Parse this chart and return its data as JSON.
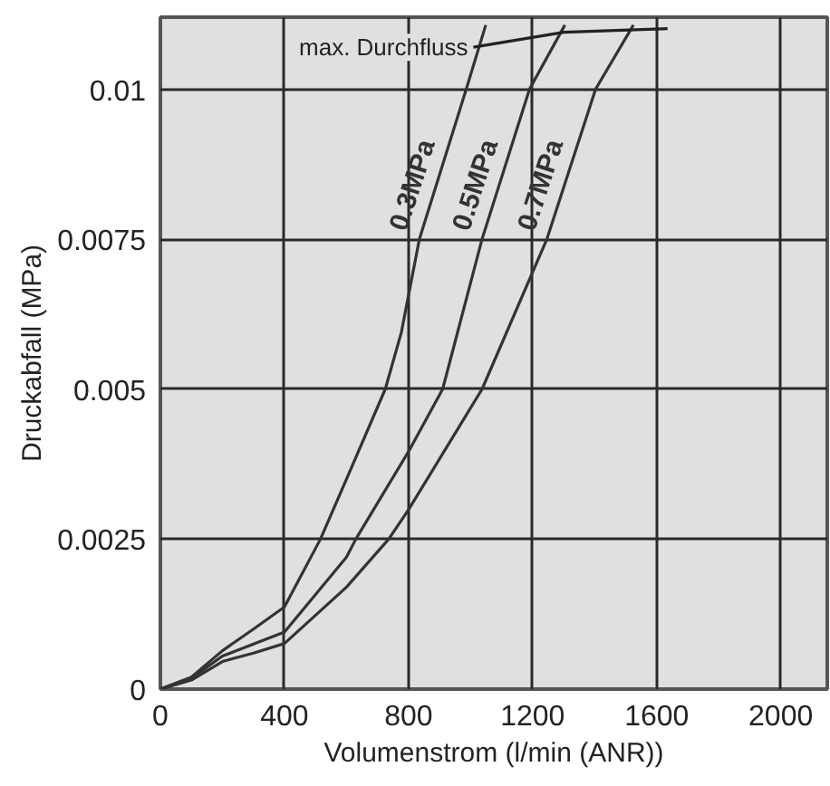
{
  "chart_data": {
    "type": "line",
    "xlabel": "Volumenstrom (l/min (ANR))",
    "ylabel": "Druckabfall (MPa)",
    "xlim": [
      0,
      2150
    ],
    "ylim": [
      0,
      0.0112
    ],
    "xticks": [
      0,
      400,
      800,
      1200,
      1600,
      2000
    ],
    "yticks": [
      0,
      0.0025,
      0.005,
      0.0075,
      0.01
    ],
    "grid": true,
    "marker": "none",
    "line_style": "solid",
    "series": [
      {
        "name": "0.3MPa",
        "color": "#333333",
        "x": [
          0,
          100,
          200,
          300,
          400,
          516,
          600,
          725,
          777,
          835,
          986,
          1049
        ],
        "values": [
          0,
          0.0002,
          0.00064,
          0.001,
          0.00137,
          0.0025,
          0.0035,
          0.005,
          0.00595,
          0.0075,
          0.01,
          0.01107
        ]
      },
      {
        "name": "0.5MPa",
        "color": "#333333",
        "x": [
          0,
          100,
          200,
          300,
          400,
          600,
          630,
          800,
          910,
          1037,
          1190,
          1304
        ],
        "values": [
          0,
          0.00018,
          0.00055,
          0.00075,
          0.00095,
          0.0022,
          0.0025,
          0.00396,
          0.005,
          0.0075,
          0.01,
          0.01107
        ]
      },
      {
        "name": "0.7MPa",
        "color": "#333333",
        "x": [
          0,
          100,
          200,
          300,
          400,
          600,
          736,
          800,
          1037,
          1246,
          1403,
          1525
        ],
        "values": [
          0,
          0.00015,
          0.00046,
          0.0006,
          0.00076,
          0.0017,
          0.0025,
          0.00299,
          0.005,
          0.0075,
          0.01,
          0.01107
        ]
      },
      {
        "name": "max. Durchfluss",
        "color": "#222222",
        "x": [
          1009,
          1300,
          1635
        ],
        "values": [
          0.0107,
          0.01095,
          0.01101
        ]
      }
    ]
  }
}
